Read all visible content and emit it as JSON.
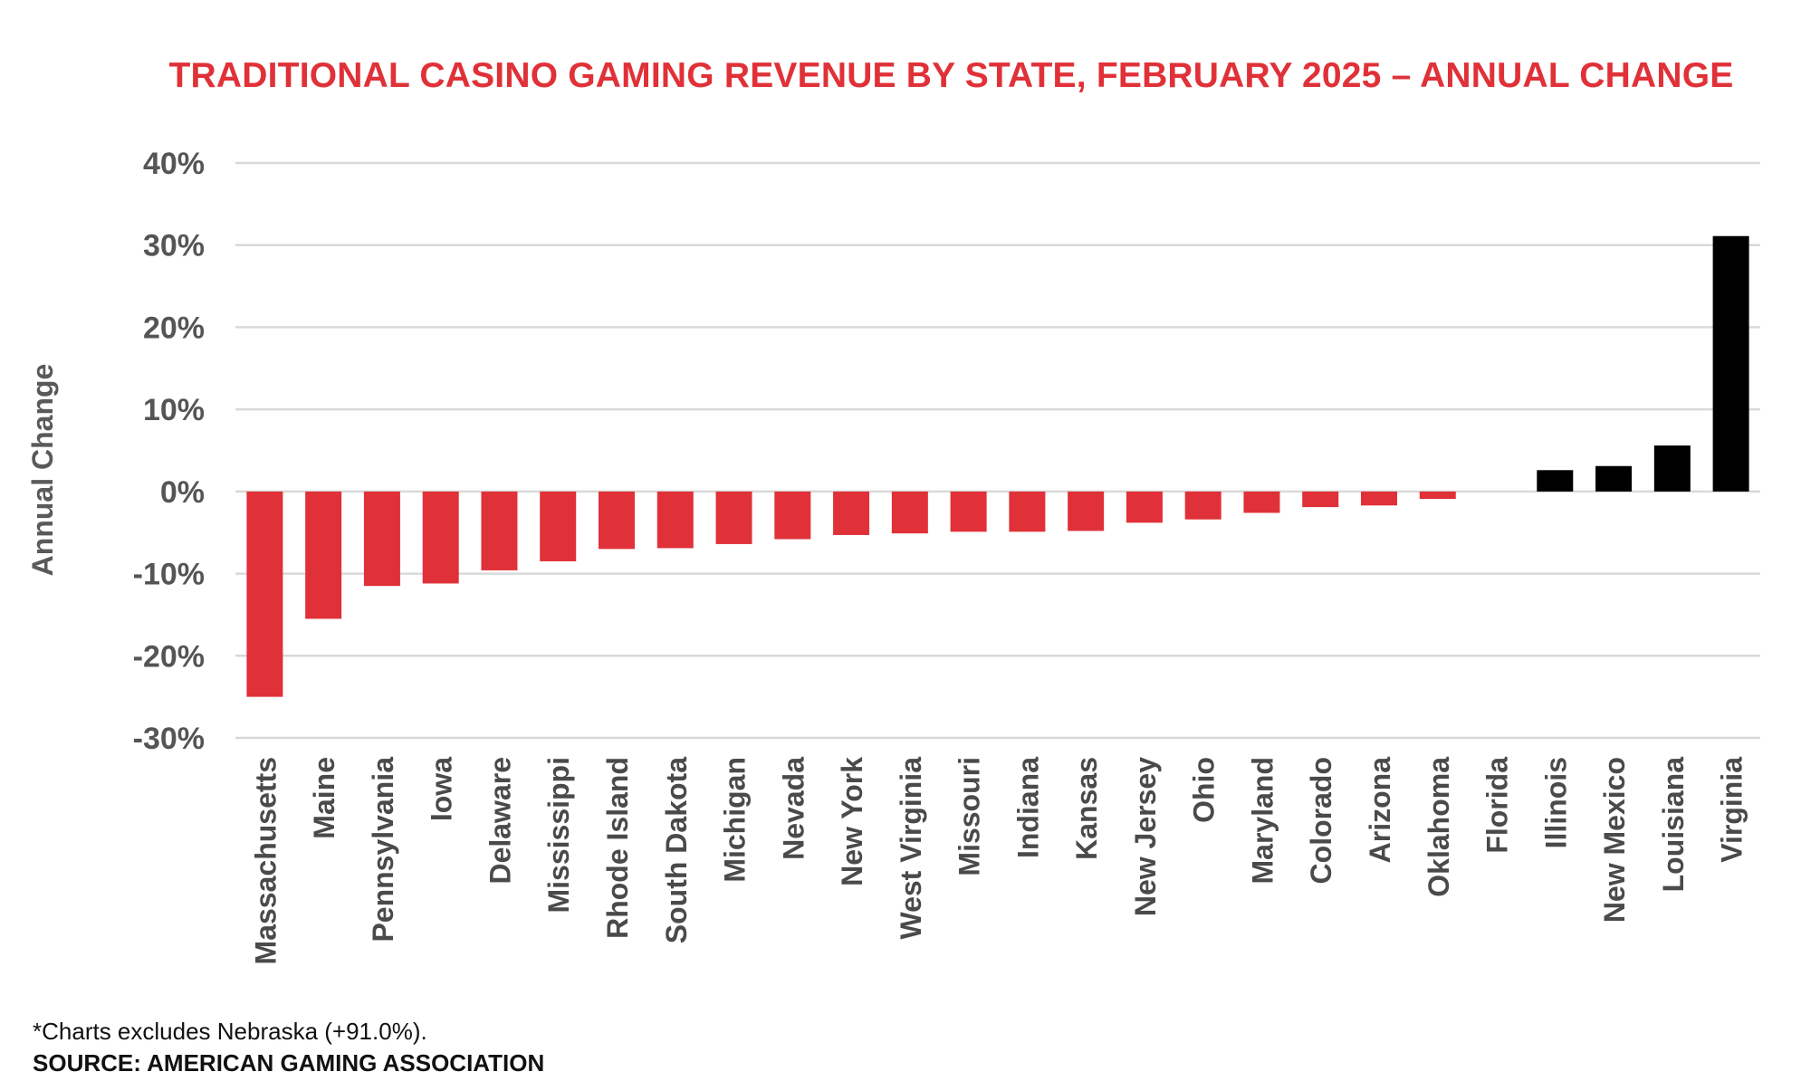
{
  "chart_data": {
    "type": "bar",
    "title": "TRADITIONAL CASINO GAMING REVENUE BY STATE, FEBRUARY 2025 – ANNUAL CHANGE",
    "ylabel": "Annual Change",
    "xlabel": "",
    "ylim": [
      -30,
      40
    ],
    "yticks": [
      40,
      30,
      20,
      10,
      0,
      -10,
      -20,
      -30
    ],
    "ytick_labels": [
      "40%",
      "30%",
      "20%",
      "10%",
      "0%",
      "-10%",
      "-20%",
      "-30%"
    ],
    "grid": true,
    "categories": [
      "Massachusetts",
      "Maine",
      "Pennsylvania",
      "Iowa",
      "Delaware",
      "Mississippi",
      "Rhode Island",
      "South Dakota",
      "Michigan",
      "Nevada",
      "New York",
      "West Virginia",
      "Missouri",
      "Indiana",
      "Kansas",
      "New Jersey",
      "Ohio",
      "Maryland",
      "Colorado",
      "Arizona",
      "Oklahoma",
      "Florida",
      "Illinois",
      "New Mexico",
      "Louisiana",
      "Virginia"
    ],
    "values": [
      -25.0,
      -15.5,
      -11.5,
      -11.2,
      -9.6,
      -8.5,
      -7.0,
      -6.9,
      -6.4,
      -5.8,
      -5.3,
      -5.1,
      -4.9,
      -4.9,
      -4.8,
      -3.8,
      -3.4,
      -2.6,
      -1.9,
      -1.7,
      -0.9,
      0.0,
      2.6,
      3.1,
      5.6,
      31.1
    ],
    "colors": {
      "negative": "#e03138",
      "positive": "#000000",
      "grid": "#d9d9d9"
    }
  },
  "footnote": "*Charts excludes Nebraska (+91.0%).",
  "source": "SOURCE: AMERICAN GAMING ASSOCIATION"
}
